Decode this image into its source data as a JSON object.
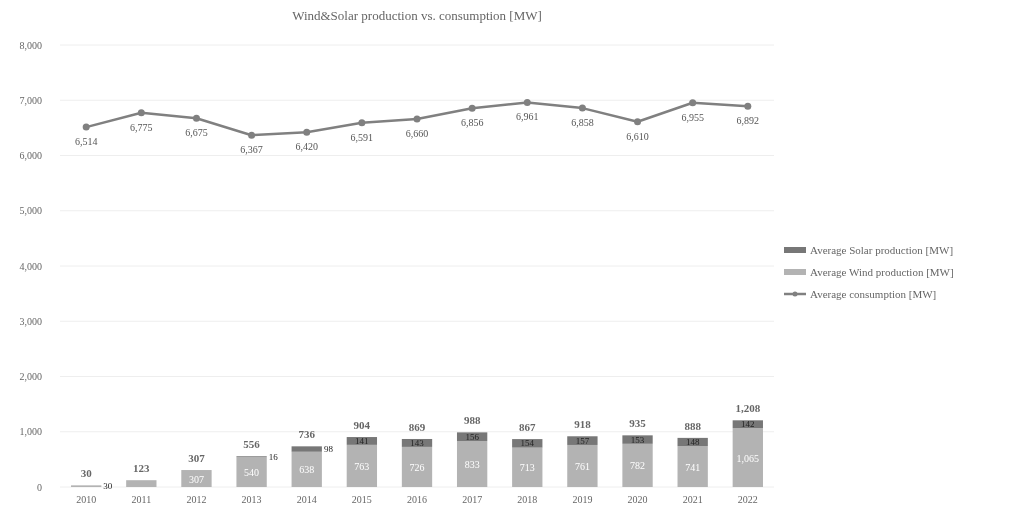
{
  "chart_data": {
    "type": "bar",
    "stacked": true,
    "title": "Wind&Solar production vs. consumption [MW]",
    "categories": [
      "2010",
      "2011",
      "2012",
      "2013",
      "2014",
      "2015",
      "2016",
      "2017",
      "2018",
      "2019",
      "2020",
      "2021",
      "2022"
    ],
    "series": [
      {
        "name": "Average Wind production [MW]",
        "color": "#b3b3b3",
        "values": [
          30,
          123,
          307,
          540,
          638,
          763,
          726,
          833,
          713,
          761,
          782,
          741,
          1065
        ],
        "value_labels": [
          "30",
          null,
          "307",
          "540",
          "638",
          "763",
          "726",
          "833",
          "713",
          "761",
          "782",
          "741",
          "1,065"
        ]
      },
      {
        "name": "Average Solar production [MW]",
        "color": "#777777",
        "values": [
          0,
          0,
          0,
          16,
          98,
          141,
          143,
          156,
          154,
          157,
          153,
          148,
          142
        ],
        "value_labels": [
          null,
          null,
          null,
          "16",
          "98",
          "141",
          "143",
          "156",
          "154",
          "157",
          "153",
          "148",
          "142"
        ]
      },
      {
        "name": "Average consumption [MW]",
        "type": "line",
        "color": "#808080",
        "marker": "circle",
        "values": [
          6514,
          6775,
          6675,
          6367,
          6420,
          6591,
          6660,
          6856,
          6961,
          6858,
          6610,
          6955,
          6892
        ],
        "value_labels": [
          "6,514",
          "6,775",
          "6,675",
          "6,367",
          "6,420",
          "6,591",
          "6,660",
          "6,856",
          "6,961",
          "6,858",
          "6,610",
          "6,955",
          "6,892"
        ]
      }
    ],
    "totals": [
      "30",
      "123",
      "307",
      "556",
      "736",
      "904",
      "869",
      "988",
      "867",
      "918",
      "935",
      "888",
      "1,208"
    ],
    "ylim": [
      0,
      8000
    ],
    "yticks": [
      {
        "value": 0,
        "label": "0"
      },
      {
        "value": 1000,
        "label": "1,000"
      },
      {
        "value": 2000,
        "label": "2,000"
      },
      {
        "value": 3000,
        "label": "3,000"
      },
      {
        "value": 4000,
        "label": "4,000"
      },
      {
        "value": 5000,
        "label": "5,000"
      },
      {
        "value": 6000,
        "label": "6,000"
      },
      {
        "value": 7000,
        "label": "7,000"
      },
      {
        "value": 8000,
        "label": "8,000"
      }
    ],
    "grid": "y",
    "legend": "right"
  }
}
